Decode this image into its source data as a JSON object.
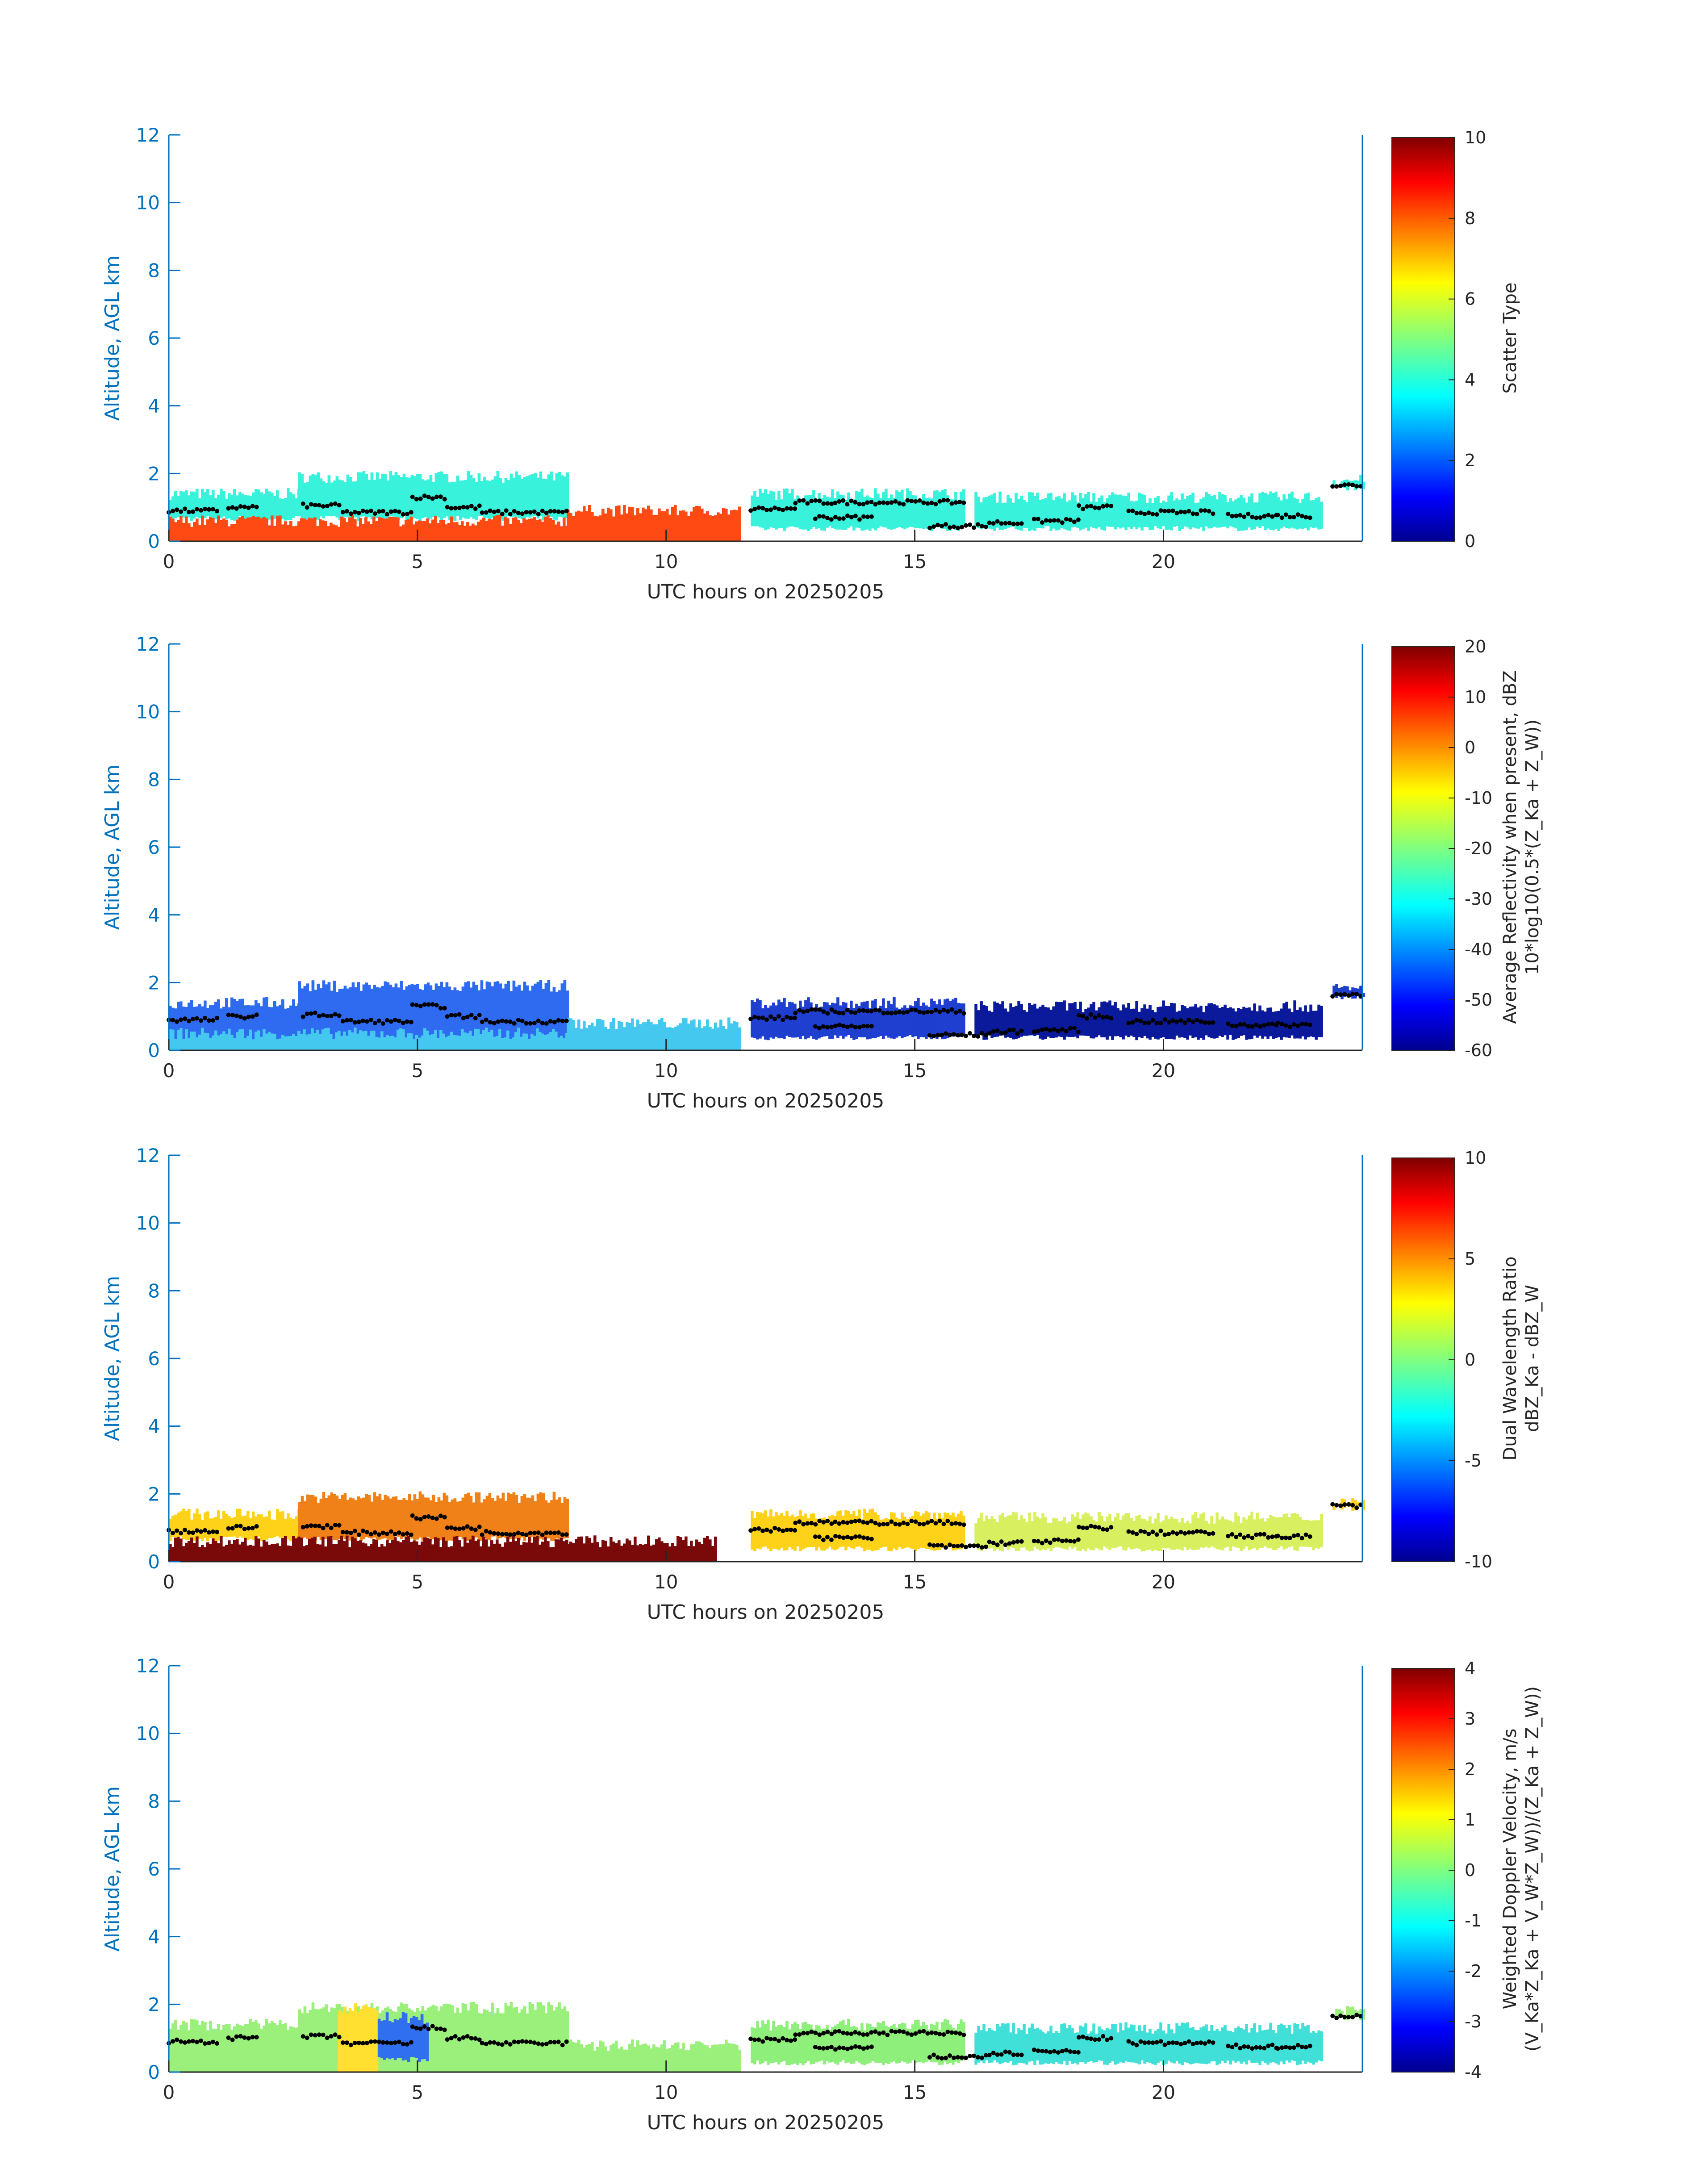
{
  "chart_data": [
    {
      "type": "heatmap",
      "xlabel": "UTC hours on 20250205",
      "ylabel": "Altitude, AGL km",
      "xlim": [
        0,
        24
      ],
      "ylim": [
        0,
        12
      ],
      "xticks": [
        "0",
        "5",
        "10",
        "15",
        "20"
      ],
      "yticks": [
        "0",
        "2",
        "4",
        "6",
        "8",
        "10",
        "12"
      ],
      "colorbar": {
        "label_lines": [
          "Scatter Type"
        ],
        "range": [
          0,
          10
        ],
        "ticks": [
          "0",
          "2",
          "4",
          "6",
          "8",
          "10"
        ],
        "colormap": "jet"
      },
      "dominant_colors": [
        "#38f2dc",
        "#ff4a14",
        "#8a3a1e"
      ],
      "echo_layers": [
        {
          "x": [
            0,
            2.6
          ],
          "top": 1.4,
          "base": 0.6,
          "color": "#38f2dc"
        },
        {
          "x": [
            2.6,
            8.0
          ],
          "top": 1.9,
          "base": 0.6,
          "color": "#38f2dc"
        },
        {
          "x": [
            0,
            8.0
          ],
          "top": 0.6,
          "base": 0.0,
          "color": "#ff4a14"
        },
        {
          "x": [
            8.0,
            11.5
          ],
          "top": 0.9,
          "base": 0.0,
          "color": "#ff4a14"
        },
        {
          "x": [
            11.7,
            16.0
          ],
          "top": 1.4,
          "base": 0.3,
          "color": "#38f2dc"
        },
        {
          "x": [
            16.2,
            23.2
          ],
          "top": 1.3,
          "base": 0.3,
          "color": "#38f2dc"
        },
        {
          "x": [
            23.4,
            24.0
          ],
          "top": 1.8,
          "base": 1.5,
          "color": "#38f2dc"
        }
      ]
    },
    {
      "type": "heatmap",
      "xlabel": "UTC hours on 20250205",
      "ylabel": "Altitude, AGL km",
      "xlim": [
        0,
        24
      ],
      "ylim": [
        0,
        12
      ],
      "xticks": [
        "0",
        "5",
        "10",
        "15",
        "20"
      ],
      "yticks": [
        "0",
        "2",
        "4",
        "6",
        "8",
        "10",
        "12"
      ],
      "colorbar": {
        "label_lines": [
          "Average Reflectivity when present, dBZ",
          "10*log10(0.5*(Z_Ka + Z_W))"
        ],
        "range": [
          -60,
          20
        ],
        "ticks": [
          "-60",
          "-50",
          "-40",
          "-30",
          "-20",
          "-10",
          "0",
          "10",
          "20"
        ],
        "colormap": "jet"
      },
      "dominant_colors": [
        "#2f6bf0",
        "#45c8f0",
        "#8be07a",
        "#0a1a9a"
      ],
      "echo_layers": [
        {
          "x": [
            0,
            2.6
          ],
          "top": 1.4,
          "base": 0.0,
          "color": "#2f6bf0"
        },
        {
          "x": [
            2.6,
            8.0
          ],
          "top": 1.9,
          "base": 0.0,
          "color": "#2f6bf0"
        },
        {
          "x": [
            0,
            8.0
          ],
          "top": 0.5,
          "base": 0.0,
          "color": "#45c8f0"
        },
        {
          "x": [
            8.0,
            11.5
          ],
          "top": 0.8,
          "base": 0.0,
          "color": "#45c8f0"
        },
        {
          "x": [
            11.7,
            16.0
          ],
          "top": 1.4,
          "base": 0.3,
          "color": "#1f3fd0"
        },
        {
          "x": [
            16.2,
            23.2
          ],
          "top": 1.3,
          "base": 0.3,
          "color": "#0a1a9a"
        },
        {
          "x": [
            23.4,
            24.0
          ],
          "top": 1.8,
          "base": 1.5,
          "color": "#1f3fd0"
        }
      ]
    },
    {
      "type": "heatmap",
      "xlabel": "UTC hours on 20250205",
      "ylabel": "Altitude, AGL km",
      "xlim": [
        0,
        24
      ],
      "ylim": [
        0,
        12
      ],
      "xticks": [
        "0",
        "5",
        "10",
        "15",
        "20"
      ],
      "yticks": [
        "0",
        "2",
        "4",
        "6",
        "8",
        "10",
        "12"
      ],
      "colorbar": {
        "label_lines": [
          "Dual Wavelength Ratio",
          "dBZ_Ka - dBZ_W"
        ],
        "range": [
          -10,
          10
        ],
        "ticks": [
          "-10",
          "-5",
          "0",
          "5",
          "10"
        ],
        "colormap": "jet"
      },
      "dominant_colors": [
        "#ffd21a",
        "#f08018",
        "#7a0a0a",
        "#b8f060"
      ],
      "echo_layers": [
        {
          "x": [
            0,
            2.6
          ],
          "top": 1.4,
          "base": 0.6,
          "color": "#ffd21a"
        },
        {
          "x": [
            2.6,
            8.0
          ],
          "top": 1.9,
          "base": 0.6,
          "color": "#f08018"
        },
        {
          "x": [
            0,
            8.0
          ],
          "top": 0.6,
          "base": 0.0,
          "color": "#7a0a0a"
        },
        {
          "x": [
            8.0,
            11.0
          ],
          "top": 0.6,
          "base": 0.0,
          "color": "#7a0a0a"
        },
        {
          "x": [
            11.7,
            16.0
          ],
          "top": 1.4,
          "base": 0.3,
          "color": "#ffd21a"
        },
        {
          "x": [
            16.2,
            23.2
          ],
          "top": 1.3,
          "base": 0.3,
          "color": "#d8f060"
        },
        {
          "x": [
            23.4,
            24.0
          ],
          "top": 1.8,
          "base": 1.5,
          "color": "#ffd21a"
        }
      ]
    },
    {
      "type": "heatmap",
      "xlabel": "UTC hours on 20250205",
      "ylabel": "Altitude, AGL km",
      "xlim": [
        0,
        24
      ],
      "ylim": [
        0,
        12
      ],
      "xticks": [
        "0",
        "5",
        "10",
        "15",
        "20"
      ],
      "yticks": [
        "0",
        "2",
        "4",
        "6",
        "8",
        "10",
        "12"
      ],
      "colorbar": {
        "label_lines": [
          "Weighted Doppler Velocity, m/s",
          "(V_Ka*Z_Ka + V_W*Z_W))/(Z_Ka + Z_W))"
        ],
        "range": [
          -4,
          4
        ],
        "ticks": [
          "-4",
          "-3",
          "-2",
          "-1",
          "0",
          "1",
          "2",
          "3",
          "4"
        ],
        "colormap": "jet"
      },
      "dominant_colors": [
        "#9af07a",
        "#40e0d8",
        "#ffe030",
        "#3070f0"
      ],
      "echo_layers": [
        {
          "x": [
            0,
            2.6
          ],
          "top": 1.4,
          "base": 0.0,
          "color": "#9af07a"
        },
        {
          "x": [
            2.6,
            8.0
          ],
          "top": 1.9,
          "base": 0.0,
          "color": "#9af07a"
        },
        {
          "x": [
            3.4,
            4.2
          ],
          "top": 1.9,
          "base": 0.0,
          "color": "#ffe030"
        },
        {
          "x": [
            4.2,
            5.2
          ],
          "top": 1.6,
          "base": 0.3,
          "color": "#3070f0"
        },
        {
          "x": [
            8.0,
            11.5
          ],
          "top": 0.8,
          "base": 0.0,
          "color": "#9af07a"
        },
        {
          "x": [
            11.7,
            16.0
          ],
          "top": 1.4,
          "base": 0.2,
          "color": "#8ef07a"
        },
        {
          "x": [
            16.2,
            23.2
          ],
          "top": 1.3,
          "base": 0.2,
          "color": "#40e0d8"
        },
        {
          "x": [
            23.4,
            24.0
          ],
          "top": 1.8,
          "base": 1.5,
          "color": "#9af07a"
        }
      ]
    }
  ],
  "cloud_base_points": {
    "color": "#000000",
    "segments": [
      {
        "x": [
          0.0,
          1.0
        ],
        "y": 0.9
      },
      {
        "x": [
          1.2,
          1.8
        ],
        "y": 1.0
      },
      {
        "x": [
          2.7,
          3.5
        ],
        "y": 1.05
      },
      {
        "x": [
          3.5,
          4.9
        ],
        "y": 0.85
      },
      {
        "x": [
          4.9,
          5.6
        ],
        "y": 1.3
      },
      {
        "x": [
          5.6,
          6.3
        ],
        "y": 1.0
      },
      {
        "x": [
          6.3,
          8.0
        ],
        "y": 0.85
      },
      {
        "x": [
          11.7,
          12.6
        ],
        "y": 0.95
      },
      {
        "x": [
          12.6,
          13.4
        ],
        "y": 1.15
      },
      {
        "x": [
          13.4,
          16.0
        ],
        "y": 1.15
      },
      {
        "x": [
          13.0,
          14.2
        ],
        "y": 0.7
      },
      {
        "x": [
          15.3,
          16.5
        ],
        "y": 0.45
      },
      {
        "x": [
          16.5,
          17.2
        ],
        "y": 0.55
      },
      {
        "x": [
          17.4,
          18.3
        ],
        "y": 0.6
      },
      {
        "x": [
          18.3,
          19.0
        ],
        "y": 1.0
      },
      {
        "x": [
          19.3,
          21.0
        ],
        "y": 0.85
      },
      {
        "x": [
          21.3,
          22.3
        ],
        "y": 0.75
      },
      {
        "x": [
          22.3,
          23.0
        ],
        "y": 0.75
      },
      {
        "x": [
          23.4,
          24.0
        ],
        "y": 1.65
      }
    ]
  }
}
